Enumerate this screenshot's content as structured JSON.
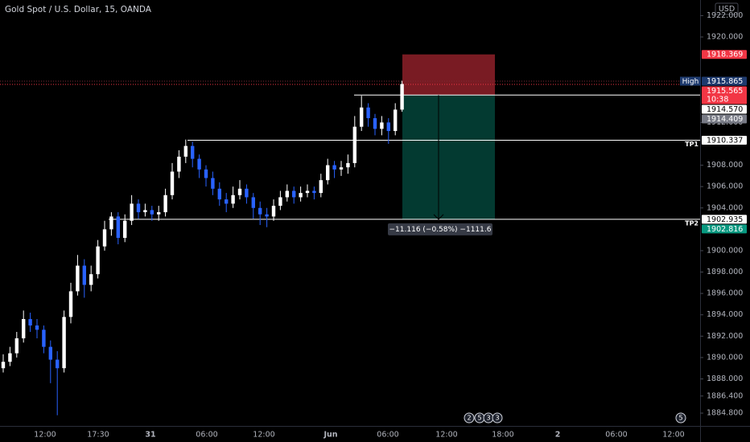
{
  "chart_data": {
    "type": "candlestick",
    "title": "Gold Spot / U.S. Dollar, 15, OANDA",
    "currency": "USD",
    "up_color": "#ffffff",
    "down_color": "#2962ff",
    "ylim": [
      1883.6,
      1923.46
    ],
    "yticks": [
      {
        "value": 1922,
        "label": "1922.000"
      },
      {
        "value": 1920,
        "label": "1920.000"
      },
      {
        "value": 1912,
        "label": "1912.000"
      },
      {
        "value": 1908,
        "label": "1908.000"
      },
      {
        "value": 1906,
        "label": "1906.000"
      },
      {
        "value": 1904,
        "label": "1904.000"
      },
      {
        "value": 1900,
        "label": "1900.000"
      },
      {
        "value": 1898,
        "label": "1898.000"
      },
      {
        "value": 1896,
        "label": "1896.000"
      },
      {
        "value": 1894,
        "label": "1894.000"
      },
      {
        "value": 1892,
        "label": "1892.000"
      },
      {
        "value": 1890,
        "label": "1890.000"
      },
      {
        "value": 1888,
        "label": "1888.000"
      },
      {
        "value": 1886.4,
        "label": "1886.400"
      },
      {
        "value": 1884.8,
        "label": "1884.800"
      }
    ],
    "xticks": [
      "12:00",
      "17:30",
      "31",
      "06:00",
      "12:00",
      "Jun",
      "06:00",
      "12:00",
      "18:00",
      "2",
      "06:00",
      "12:00"
    ],
    "open": [
      1889.0,
      1889.6,
      1890.4,
      1891.8,
      1893.6,
      1893.0,
      1892.6,
      1891.0,
      1889.8,
      1889.0,
      1893.8,
      1896.2,
      1898.6,
      1896.8,
      1897.8,
      1900.4,
      1902.0,
      1903.2,
      1901.2,
      1902.8,
      1904.4,
      1903.6,
      1903.8,
      1903.4,
      1903.6,
      1905.2,
      1907.4,
      1908.8,
      1909.8,
      1908.6,
      1907.6,
      1906.8,
      1905.8,
      1904.8,
      1904.4,
      1905.2,
      1905.8,
      1905.0,
      1904.0,
      1903.4,
      1903.2,
      1904.2,
      1905.0,
      1905.6,
      1905.0,
      1905.4,
      1905.6,
      1905.4,
      1906.6,
      1908.0,
      1907.6,
      1907.8,
      1908.2,
      1911.6,
      1913.4,
      1912.4,
      1911.4,
      1912.0,
      1911.2,
      1913.2
    ],
    "high": [
      1890.3,
      1891.0,
      1892.4,
      1894.4,
      1894.2,
      1893.6,
      1893.0,
      1891.6,
      1890.6,
      1894.4,
      1897.0,
      1899.6,
      1899.2,
      1898.6,
      1901.0,
      1902.8,
      1903.6,
      1903.6,
      1903.4,
      1905.2,
      1904.8,
      1904.4,
      1904.2,
      1904.2,
      1905.8,
      1908.2,
      1909.4,
      1910.4,
      1910.2,
      1909.0,
      1908.0,
      1907.4,
      1906.4,
      1905.4,
      1906.0,
      1906.6,
      1906.2,
      1905.4,
      1904.6,
      1904.0,
      1904.8,
      1905.6,
      1906.2,
      1906.0,
      1906.0,
      1906.2,
      1906.0,
      1907.2,
      1908.6,
      1908.4,
      1908.4,
      1909.0,
      1912.6,
      1914.5,
      1913.8,
      1912.8,
      1912.6,
      1912.4,
      1913.8,
      1915.9
    ],
    "low": [
      1888.6,
      1889.2,
      1890.0,
      1891.4,
      1892.4,
      1891.8,
      1890.4,
      1887.6,
      1884.6,
      1888.6,
      1893.2,
      1895.8,
      1895.6,
      1896.2,
      1897.4,
      1900.0,
      1901.4,
      1900.6,
      1900.8,
      1902.4,
      1903.0,
      1903.2,
      1902.8,
      1902.8,
      1903.2,
      1904.8,
      1906.8,
      1908.2,
      1907.8,
      1906.8,
      1906.0,
      1905.2,
      1904.2,
      1903.6,
      1904.0,
      1904.8,
      1904.4,
      1903.0,
      1902.4,
      1902.2,
      1902.8,
      1903.8,
      1904.6,
      1904.4,
      1904.6,
      1905.0,
      1904.8,
      1905.0,
      1906.2,
      1906.8,
      1907.0,
      1907.2,
      1907.8,
      1911.2,
      1911.6,
      1910.8,
      1910.8,
      1910.0,
      1910.8,
      1913.0
    ],
    "close": [
      1889.6,
      1890.4,
      1891.8,
      1893.6,
      1893.0,
      1892.6,
      1891.0,
      1889.8,
      1889.0,
      1893.8,
      1896.2,
      1898.6,
      1896.8,
      1897.8,
      1900.4,
      1902.0,
      1903.2,
      1901.2,
      1902.8,
      1904.4,
      1903.6,
      1903.8,
      1903.4,
      1903.6,
      1905.2,
      1907.4,
      1908.8,
      1909.8,
      1908.6,
      1907.6,
      1906.8,
      1905.8,
      1904.8,
      1904.4,
      1905.2,
      1905.8,
      1905.0,
      1904.0,
      1903.4,
      1903.2,
      1904.2,
      1905.0,
      1905.6,
      1905.0,
      1905.4,
      1905.6,
      1905.4,
      1906.6,
      1908.0,
      1907.6,
      1907.8,
      1908.2,
      1911.6,
      1913.4,
      1912.4,
      1911.4,
      1912.0,
      1911.2,
      1913.2,
      1915.6
    ],
    "price_tags": [
      {
        "value": 1918.369,
        "label": "1918.369",
        "color": "#f23645"
      },
      {
        "value": 1915.865,
        "label": "1915.865",
        "color": "#1e3a6e",
        "title": "High"
      },
      {
        "value": 1915.565,
        "label": "1915.565",
        "color": "#f23645",
        "sub": "10:38"
      },
      {
        "value": 1914.57,
        "label": "1914.570",
        "color": "#ffffff"
      },
      {
        "value": 1914.409,
        "label": "1914.409",
        "color": "#787b86"
      },
      {
        "value": 1910.337,
        "label": "1910.337",
        "color": "#ffffff",
        "title": "TP1"
      },
      {
        "value": 1902.935,
        "label": "1902.935",
        "color": "#ffffff",
        "title": "TP2"
      },
      {
        "value": 1902.816,
        "label": "1902.816",
        "color": "#089981"
      }
    ],
    "measure_label": "−11.116 (−0.58%) −1111.6",
    "events": [
      "2",
      "5",
      "3",
      "3",
      "5"
    ]
  }
}
